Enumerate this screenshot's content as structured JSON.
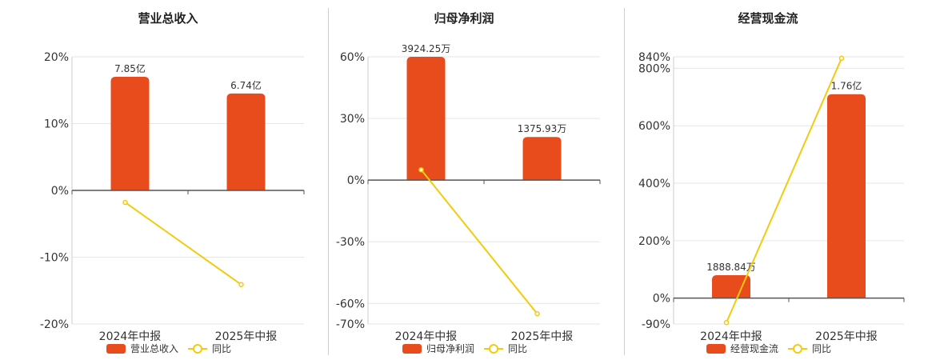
{
  "colors": {
    "bar": "#e84b1c",
    "line": "#f2cc0c",
    "grid": "#e6e6e6",
    "axis": "#555555"
  },
  "chart_data": [
    {
      "type": "bar",
      "title": "营业总收入",
      "categories": [
        "2024年中报",
        "2025年中报"
      ],
      "series": [
        {
          "name": "营业总收入",
          "type": "bar",
          "values": [
            17,
            14.5
          ],
          "labels": [
            "7.85亿",
            "6.74亿"
          ]
        },
        {
          "name": "同比",
          "type": "line",
          "values": [
            -1.8,
            -14.1
          ]
        }
      ],
      "ylim": [
        -20,
        20
      ],
      "yticks": [
        20,
        10,
        0,
        -10,
        -20
      ],
      "ytick_labels": [
        "20%",
        "10%",
        "0%",
        "-10%",
        "-20%"
      ],
      "grid": true,
      "legend": "bottom"
    },
    {
      "type": "bar",
      "title": "归母净利润",
      "categories": [
        "2024年中报",
        "2025年中报"
      ],
      "series": [
        {
          "name": "归母净利润",
          "type": "bar",
          "values": [
            60,
            21
          ],
          "labels": [
            "3924.25万",
            "1375.93万"
          ]
        },
        {
          "name": "同比",
          "type": "line",
          "values": [
            5,
            -65
          ]
        }
      ],
      "ylim": [
        -70,
        60
      ],
      "yticks": [
        60,
        30,
        0,
        -30,
        -60,
        -70
      ],
      "ytick_labels": [
        "60%",
        "30%",
        "0%",
        "-30%",
        "-60%",
        "-70%"
      ],
      "grid": true,
      "legend": "bottom"
    },
    {
      "type": "bar",
      "title": "经营现金流",
      "categories": [
        "2024年中报",
        "2025年中报"
      ],
      "series": [
        {
          "name": "经营现金流",
          "type": "bar",
          "values": [
            80,
            710
          ],
          "labels": [
            "1888.84万",
            "1.76亿"
          ]
        },
        {
          "name": "同比",
          "type": "line",
          "values": [
            -85,
            835
          ]
        }
      ],
      "ylim": [
        -90,
        840
      ],
      "yticks": [
        840,
        800,
        600,
        400,
        200,
        0,
        -90
      ],
      "ytick_labels": [
        "840%",
        "800%",
        "600%",
        "400%",
        "200%",
        "0%",
        "-90%"
      ],
      "grid": true,
      "legend": "bottom"
    }
  ]
}
